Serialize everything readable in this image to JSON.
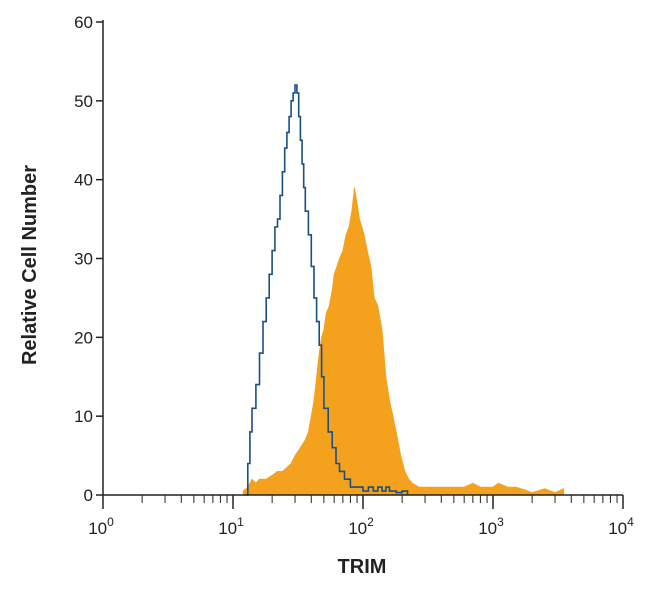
{
  "chart_data": {
    "type": "histogram",
    "title": "",
    "xlabel": "TRIM",
    "ylabel": "Relative Cell Number",
    "x_scale": "log",
    "xlim": [
      1,
      10000
    ],
    "ylim": [
      0,
      60
    ],
    "x_ticks": [
      {
        "value": 1,
        "base": "10",
        "exp": "0"
      },
      {
        "value": 10,
        "base": "10",
        "exp": "1"
      },
      {
        "value": 100,
        "base": "10",
        "exp": "2"
      },
      {
        "value": 1000,
        "base": "10",
        "exp": "3"
      },
      {
        "value": 10000,
        "base": "10",
        "exp": "4"
      }
    ],
    "y_ticks": [
      0,
      10,
      20,
      30,
      40,
      50,
      60
    ],
    "grid": false,
    "legend": "none",
    "series": [
      {
        "style": "filled",
        "color": "#F4A21E",
        "points": [
          [
            12,
            0.5
          ],
          [
            13,
            1
          ],
          [
            14,
            2
          ],
          [
            15,
            1.5
          ],
          [
            16,
            2
          ],
          [
            18,
            2
          ],
          [
            20,
            2.5
          ],
          [
            22,
            3
          ],
          [
            24,
            3
          ],
          [
            26,
            3.5
          ],
          [
            28,
            4
          ],
          [
            30,
            5
          ],
          [
            33,
            6
          ],
          [
            36,
            7
          ],
          [
            38,
            8
          ],
          [
            40,
            10
          ],
          [
            42,
            12
          ],
          [
            44,
            15
          ],
          [
            46,
            18
          ],
          [
            48,
            20
          ],
          [
            50,
            21
          ],
          [
            52,
            23
          ],
          [
            55,
            24
          ],
          [
            58,
            26
          ],
          [
            60,
            28
          ],
          [
            63,
            29
          ],
          [
            66,
            30
          ],
          [
            70,
            31
          ],
          [
            74,
            33
          ],
          [
            78,
            34
          ],
          [
            82,
            36
          ],
          [
            86,
            39
          ],
          [
            90,
            37
          ],
          [
            94,
            35
          ],
          [
            98,
            34
          ],
          [
            102,
            33
          ],
          [
            108,
            31
          ],
          [
            115,
            29
          ],
          [
            122,
            25
          ],
          [
            130,
            24
          ],
          [
            140,
            21
          ],
          [
            150,
            15
          ],
          [
            160,
            12
          ],
          [
            170,
            10
          ],
          [
            180,
            8
          ],
          [
            195,
            5
          ],
          [
            210,
            3
          ],
          [
            225,
            2
          ],
          [
            240,
            1.5
          ],
          [
            270,
            1
          ],
          [
            300,
            1
          ],
          [
            400,
            1
          ],
          [
            500,
            1
          ],
          [
            600,
            1
          ],
          [
            700,
            1.5
          ],
          [
            800,
            1
          ],
          [
            900,
            1
          ],
          [
            1000,
            1
          ],
          [
            1100,
            1.5
          ],
          [
            1300,
            1
          ],
          [
            1500,
            1
          ],
          [
            1800,
            0.6
          ],
          [
            2000,
            0.3
          ],
          [
            2500,
            0.8
          ],
          [
            3000,
            0.3
          ],
          [
            3500,
            0.8
          ]
        ]
      },
      {
        "style": "outline",
        "color": "#1B4F80",
        "points": [
          [
            12.5,
            0
          ],
          [
            13,
            4
          ],
          [
            13.5,
            8
          ],
          [
            14,
            11
          ],
          [
            15,
            14
          ],
          [
            16,
            18
          ],
          [
            17,
            22
          ],
          [
            18,
            25
          ],
          [
            19,
            28
          ],
          [
            20,
            31
          ],
          [
            21,
            34
          ],
          [
            22,
            35
          ],
          [
            23,
            38
          ],
          [
            24,
            41
          ],
          [
            25,
            44
          ],
          [
            26,
            46
          ],
          [
            27,
            48
          ],
          [
            28,
            50
          ],
          [
            29,
            51
          ],
          [
            30,
            52
          ],
          [
            31,
            51
          ],
          [
            32,
            48
          ],
          [
            33,
            45
          ],
          [
            34,
            42
          ],
          [
            35,
            39
          ],
          [
            36,
            36
          ],
          [
            38,
            33
          ],
          [
            40,
            29
          ],
          [
            42,
            25
          ],
          [
            44,
            22
          ],
          [
            46,
            19
          ],
          [
            48,
            15
          ],
          [
            50,
            11
          ],
          [
            54,
            8
          ],
          [
            58,
            6
          ],
          [
            62,
            4
          ],
          [
            66,
            3
          ],
          [
            72,
            2
          ],
          [
            80,
            1
          ],
          [
            90,
            1
          ],
          [
            100,
            0.5
          ],
          [
            110,
            1
          ],
          [
            120,
            0.5
          ],
          [
            130,
            1
          ],
          [
            140,
            0.5
          ],
          [
            150,
            1
          ],
          [
            160,
            0.5
          ],
          [
            180,
            0.3
          ],
          [
            200,
            0.5
          ],
          [
            220,
            0
          ]
        ]
      }
    ]
  }
}
